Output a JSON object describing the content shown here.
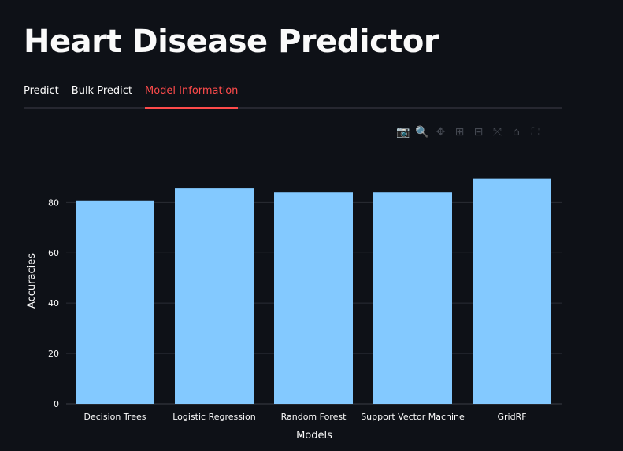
{
  "title": "Heart Disease Predictor",
  "tabs": [
    {
      "label": "Predict"
    },
    {
      "label": "Bulk Predict"
    },
    {
      "label": "Model Information",
      "active": true
    }
  ],
  "toolbar": [
    {
      "icon": "camera-icon",
      "glyph": "📷"
    },
    {
      "icon": "zoom-icon",
      "glyph": "🔍"
    },
    {
      "icon": "pan-icon",
      "glyph": "✥"
    },
    {
      "icon": "zoom-in-icon",
      "glyph": "⊞"
    },
    {
      "icon": "zoom-out-icon",
      "glyph": "⊟"
    },
    {
      "icon": "autoscale-icon",
      "glyph": "⤧"
    },
    {
      "icon": "home-icon",
      "glyph": "⌂"
    },
    {
      "icon": "fullscreen-icon",
      "glyph": "⛶"
    }
  ],
  "colors": {
    "accent": "#ff4b4b",
    "bar": "#83c9ff",
    "background": "#0e1117"
  },
  "chart_data": {
    "type": "bar",
    "categories": [
      "Decision Trees",
      "Logistic Regression",
      "Random Forest",
      "Support Vector Machine",
      "GridRF"
    ],
    "values": [
      80.8,
      85.7,
      84.1,
      84.1,
      89.6
    ],
    "xlabel": "Models",
    "ylabel": "Accuracies",
    "ylim": [
      0,
      93
    ],
    "yticks": [
      0,
      20,
      40,
      60,
      80
    ],
    "grid": true
  }
}
